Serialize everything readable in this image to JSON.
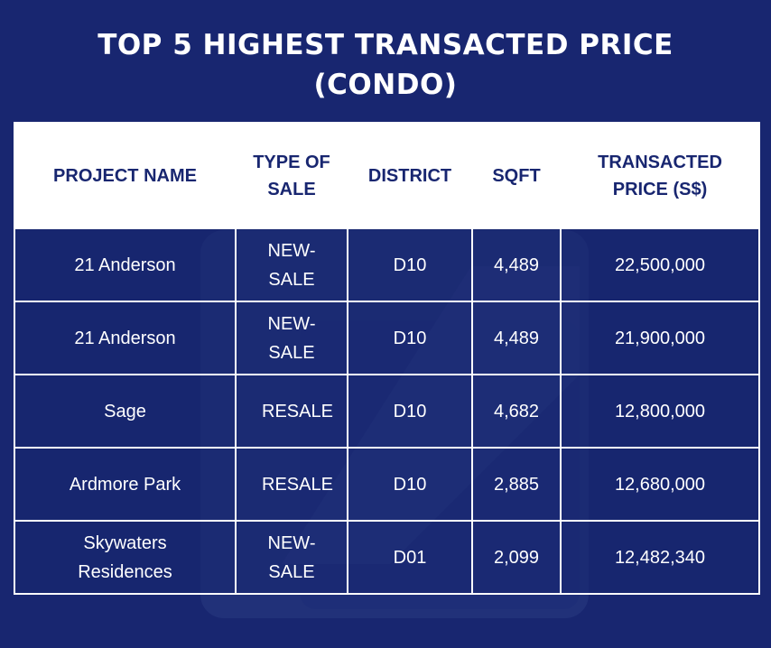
{
  "title": {
    "line1": "TOP 5 HIGHEST TRANSACTED PRICE",
    "line2": "(CONDO)"
  },
  "table": {
    "headers": [
      "PROJECT NAME",
      "TYPE OF SALE",
      "DISTRICT",
      "SQFT",
      "TRANSACTED PRICE (S$)"
    ],
    "rows": [
      [
        "21 Anderson",
        "NEW-SALE",
        "D10",
        "4,489",
        "22,500,000"
      ],
      [
        "21 Anderson",
        "NEW-SALE",
        "D10",
        "4,489",
        "21,900,000"
      ],
      [
        "Sage",
        "RESALE",
        "D10",
        "4,682",
        "12,800,000"
      ],
      [
        "Ardmore Park",
        "RESALE",
        "D10",
        "2,885",
        "12,680,000"
      ],
      [
        "Skywaters Residences",
        "NEW-SALE",
        "D01",
        "2,099",
        "12,482,340"
      ]
    ]
  },
  "colors": {
    "background": "#182670",
    "header_bg": "#ffffff",
    "text_light": "#ffffff"
  },
  "watermark_icon": "brand-logo-watermark"
}
